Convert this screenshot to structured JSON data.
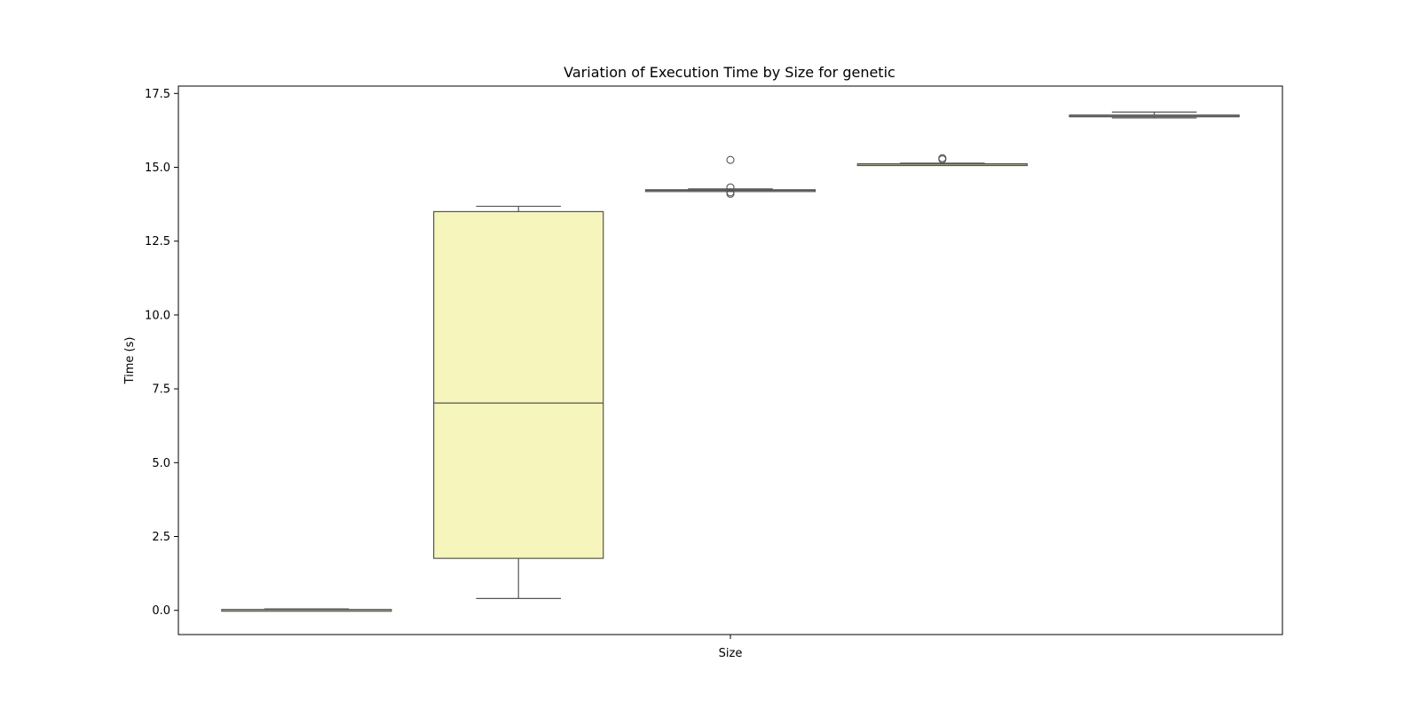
{
  "chart_data": {
    "type": "box",
    "title": "Variation of Execution Time by Size for genetic",
    "xlabel": "Size",
    "ylabel": "Time (s)",
    "ylim": [
      -0.82,
      17.75
    ],
    "yticks": [
      0.0,
      2.5,
      5.0,
      7.5,
      10.0,
      12.5,
      15.0,
      17.5
    ],
    "ytick_labels": [
      "0.0",
      "2.5",
      "5.0",
      "7.5",
      "10.0",
      "12.5",
      "15.0",
      "17.5"
    ],
    "grid": false,
    "legend": "none",
    "colors": {
      "box_fill": [
        "#f5f5c0",
        "#f5f5bc",
        "#f5f5bc",
        "#f5f5bc",
        "#f5f5bc"
      ],
      "box_edge": "#555555"
    },
    "series": [
      {
        "min": 0.0,
        "q1": 0.01,
        "median": 0.02,
        "q3": 0.03,
        "max": 0.05,
        "outliers": []
      },
      {
        "min": 0.4,
        "q1": 1.76,
        "median": 7.02,
        "q3": 13.5,
        "max": 13.68,
        "outliers": []
      },
      {
        "min": 14.19,
        "q1": 14.2,
        "median": 14.22,
        "q3": 14.24,
        "max": 14.27,
        "outliers": [
          14.1,
          14.15,
          14.32,
          15.25
        ]
      },
      {
        "min": 15.09,
        "q1": 15.1,
        "median": 15.11,
        "q3": 15.12,
        "max": 15.14,
        "outliers": [
          15.27,
          15.31
        ]
      },
      {
        "min": 16.67,
        "q1": 16.71,
        "median": 16.73,
        "q3": 16.77,
        "max": 16.87,
        "outliers": []
      }
    ]
  }
}
